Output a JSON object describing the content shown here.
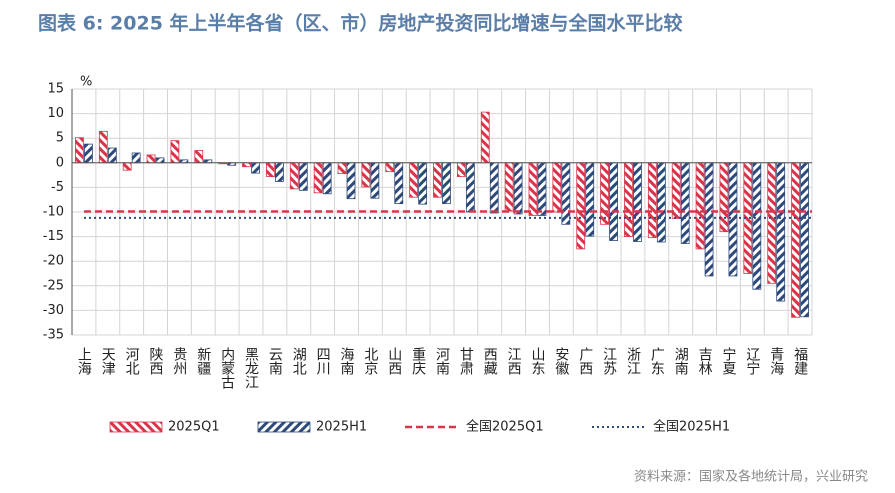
{
  "chart_data": {
    "type": "bar",
    "title": "图表 6:  2025 年上半年各省（区、市）房地产投资同比增速与全国水平比较",
    "y_unit": "%",
    "source": "资料来源：国家及各地统计局，兴业研究",
    "categories": [
      "上海",
      "天津",
      "河北",
      "陕西",
      "贵州",
      "新疆",
      "内蒙古",
      "黑龙江",
      "云南",
      "湖北",
      "四川",
      "海南",
      "北京",
      "山西",
      "重庆",
      "河南",
      "甘肃",
      "西藏",
      "江西",
      "山东",
      "安徽",
      "广西",
      "江苏",
      "浙江",
      "广东",
      "湖南",
      "吉林",
      "宁夏",
      "辽宁",
      "青海",
      "福建"
    ],
    "series": [
      {
        "name": "2025Q1",
        "color": "#d9344a",
        "values": [
          5.1,
          6.4,
          -1.5,
          1.6,
          4.5,
          2.5,
          -0.2,
          -0.8,
          -2.8,
          -5.3,
          -6.1,
          -2.2,
          -4.9,
          -1.8,
          -7.0,
          -7.0,
          -2.8,
          10.3,
          -9.8,
          -10.7,
          -10.0,
          -17.5,
          -12.5,
          -15.0,
          -15.2,
          -11.3,
          -17.5,
          -14.0,
          -22.5,
          -24.5,
          -31.4
        ]
      },
      {
        "name": "2025H1",
        "color": "#2e4a7a",
        "values": [
          3.8,
          3.0,
          2.0,
          1.0,
          0.6,
          0.6,
          -0.5,
          -2.1,
          -3.8,
          -5.6,
          -6.3,
          -7.3,
          -7.2,
          -8.3,
          -8.4,
          -8.3,
          -10.0,
          -10.2,
          -10.4,
          -10.7,
          -12.5,
          -14.9,
          -15.8,
          -16.0,
          -16.1,
          -16.4,
          -23.0,
          -23.0,
          -25.7,
          -28.1,
          -31.3
        ]
      }
    ],
    "reference_lines": [
      {
        "name": "全国2025Q1",
        "value": -9.9,
        "color": "#d9344a",
        "style": "dashed"
      },
      {
        "name": "全国2025H1",
        "value": -11.2,
        "color": "#2e4a7a",
        "style": "dotted"
      }
    ],
    "ylim": [
      -35,
      15
    ],
    "yticks": [
      15,
      10,
      5,
      0,
      -5,
      -10,
      -15,
      -20,
      -25,
      -30,
      -35
    ],
    "grid": true
  }
}
